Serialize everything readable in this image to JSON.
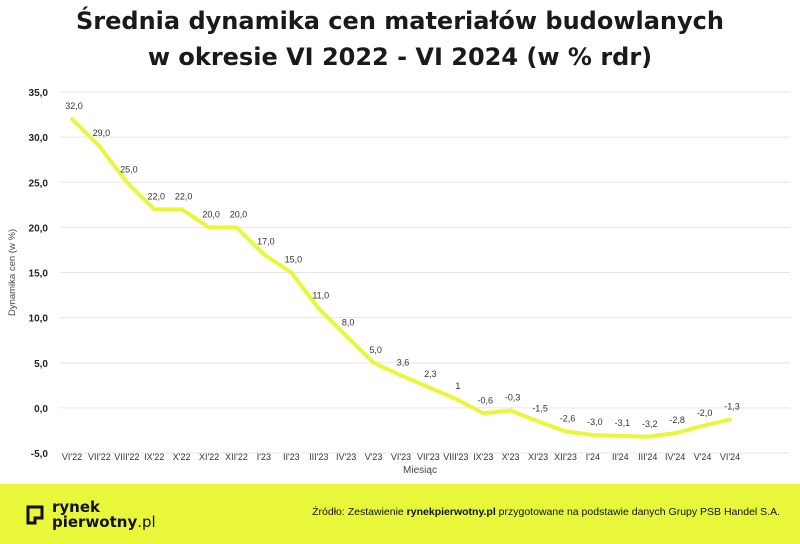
{
  "title_line1": "Średnia dynamika cen materiałów budowlanych",
  "title_line2": "w okresie VI 2022 - VI 2024 (w % rdr)",
  "footer": {
    "logo_line1": "rynek",
    "logo_line2_bold": "pierwotny",
    "logo_line2_suffix": ".pl",
    "source_prefix": "Źródło: Zestawienie ",
    "source_bold": "rynekpierwotny.pl",
    "source_suffix": " przygotowane na podstawie danych Grupy PSB Handel S.A."
  },
  "colors": {
    "line": "#e9f73b",
    "footer_bg": "#e9f73b",
    "grid": "#e6e6e6"
  },
  "chart_data": {
    "type": "line",
    "xlabel": "Miesiąc",
    "ylabel": "Dynamika cen (w %)",
    "ylim": [
      -5,
      35
    ],
    "yticks": [
      -5,
      0,
      5,
      10,
      15,
      20,
      25,
      30,
      35
    ],
    "ytick_labels": [
      "-5,0",
      "0,0",
      "5,0",
      "10,0",
      "15,0",
      "20,0",
      "25,0",
      "30,0",
      "35,0"
    ],
    "grid": true,
    "categories": [
      "VI'22",
      "VII'22",
      "VIII'22",
      "IX'22",
      "X'22",
      "XI'22",
      "XII'22",
      "I'23",
      "II'23",
      "III'23",
      "IV'23",
      "V'23",
      "VI'23",
      "VII'23",
      "VIII'23",
      "IX'23",
      "X'23",
      "XI'23",
      "XII'23",
      "I'24",
      "II'24",
      "III'24",
      "IV'24",
      "V'24",
      "VI'24"
    ],
    "series": [
      {
        "values": [
          32.0,
          29.0,
          25.0,
          22.0,
          22.0,
          20.0,
          20.0,
          17.0,
          15.0,
          11.0,
          8.0,
          5.0,
          3.6,
          2.3,
          1,
          -0.6,
          -0.3,
          -1.5,
          -2.6,
          -3.0,
          -3.1,
          -3.2,
          -2.8,
          -2.0,
          -1.3
        ],
        "labels": [
          "32,0",
          "29,0",
          "25,0",
          "22,0",
          "22,0",
          "20,0",
          "20,0",
          "17,0",
          "15,0",
          "11,0",
          "8,0",
          "5,0",
          "3,6",
          "2,3",
          "1",
          "-0,6",
          "-0,3",
          "-1,5",
          "-2,6",
          "-3,0",
          "-3,1",
          "-3,2",
          "-2,8",
          "-2,0",
          "-1,3"
        ]
      }
    ]
  }
}
